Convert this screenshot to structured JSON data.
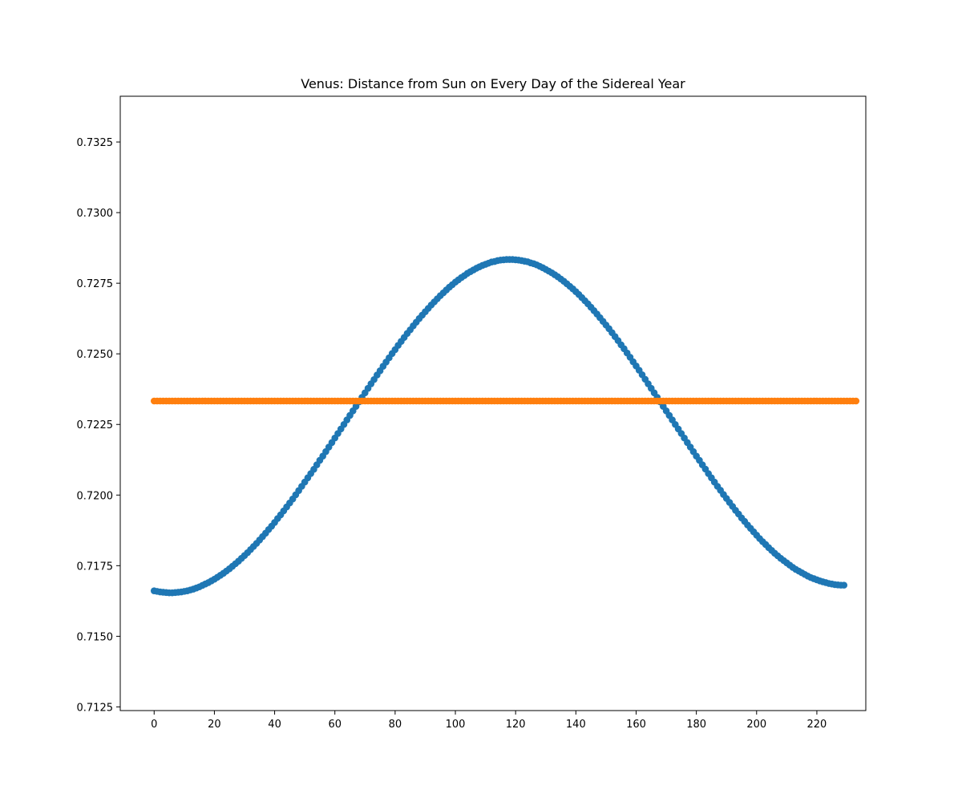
{
  "chart_data": {
    "type": "scatter",
    "title": "Venus: Distance from Sun on Every Day of the Sidereal Year",
    "xlabel": "",
    "ylabel": "",
    "xlim": [
      -11.25,
      236.25
    ],
    "ylim": [
      0.71237,
      0.73412
    ],
    "x_ticks": [
      0,
      20,
      40,
      60,
      80,
      100,
      120,
      140,
      160,
      180,
      200,
      220
    ],
    "x_tick_labels": [
      "0",
      "20",
      "40",
      "60",
      "80",
      "100",
      "120",
      "140",
      "160",
      "180",
      "200",
      "220"
    ],
    "y_ticks": [
      0.7125,
      0.715,
      0.7175,
      0.72,
      0.7225,
      0.725,
      0.7275,
      0.73,
      0.7325
    ],
    "y_tick_labels": [
      "0.7125",
      "0.7150",
      "0.7175",
      "0.7200",
      "0.7225",
      "0.7250",
      "0.7275",
      "0.7300",
      "0.7325"
    ],
    "grid": false,
    "legend": "none",
    "x_start": 0,
    "x_step": 1,
    "series": [
      {
        "color": "#1f77b4",
        "y": [
          0.71661,
          0.71659,
          0.71657,
          0.71656,
          0.71655,
          0.71654,
          0.71654,
          0.71655,
          0.71656,
          0.71657,
          0.71659,
          0.71661,
          0.71664,
          0.71667,
          0.71671,
          0.71675,
          0.7168,
          0.71685,
          0.7169,
          0.71696,
          0.71702,
          0.71709,
          0.71716,
          0.71723,
          0.71731,
          0.71739,
          0.71748,
          0.71757,
          0.71766,
          0.71776,
          0.71786,
          0.71796,
          0.71807,
          0.71818,
          0.71829,
          0.71841,
          0.71853,
          0.71865,
          0.71878,
          0.7189,
          0.71903,
          0.71917,
          0.7193,
          0.71944,
          0.71958,
          0.71972,
          0.71986,
          0.72001,
          0.72016,
          0.72031,
          0.72046,
          0.72061,
          0.72076,
          0.72091,
          0.72107,
          0.72123,
          0.72138,
          0.72154,
          0.7217,
          0.72186,
          0.72202,
          0.72218,
          0.72234,
          0.7225,
          0.72266,
          0.72282,
          0.72298,
          0.72314,
          0.7233,
          0.72346,
          0.72362,
          0.72378,
          0.72394,
          0.72409,
          0.72425,
          0.7244,
          0.72456,
          0.72471,
          0.72486,
          0.72501,
          0.72515,
          0.7253,
          0.72544,
          0.72558,
          0.72572,
          0.72585,
          0.72599,
          0.72612,
          0.72625,
          0.72637,
          0.72649,
          0.72661,
          0.72673,
          0.72684,
          0.72695,
          0.72706,
          0.72716,
          0.72726,
          0.72736,
          0.72745,
          0.72754,
          0.72762,
          0.7277,
          0.72777,
          0.72785,
          0.72791,
          0.72797,
          0.72803,
          0.72808,
          0.72813,
          0.72817,
          0.72821,
          0.72825,
          0.72827,
          0.7283,
          0.72832,
          0.72833,
          0.72834,
          0.72834,
          0.72834,
          0.72833,
          0.72832,
          0.7283,
          0.72828,
          0.72826,
          0.72822,
          0.72819,
          0.72815,
          0.7281,
          0.72805,
          0.72799,
          0.72793,
          0.72787,
          0.7278,
          0.72773,
          0.72765,
          0.72757,
          0.72748,
          0.72739,
          0.7273,
          0.7272,
          0.7271,
          0.72699,
          0.72688,
          0.72677,
          0.72665,
          0.72653,
          0.72641,
          0.72628,
          0.72615,
          0.72602,
          0.72589,
          0.72575,
          0.72561,
          0.72547,
          0.72532,
          0.72518,
          0.72503,
          0.72488,
          0.72472,
          0.72457,
          0.72442,
          0.72426,
          0.7241,
          0.72394,
          0.72378,
          0.72362,
          0.72346,
          0.7233,
          0.72314,
          0.72298,
          0.72282,
          0.72266,
          0.7225,
          0.72234,
          0.72218,
          0.72202,
          0.72186,
          0.7217,
          0.72154,
          0.72138,
          0.72123,
          0.72107,
          0.72092,
          0.72076,
          0.72061,
          0.72046,
          0.72031,
          0.72017,
          0.72002,
          0.71988,
          0.71974,
          0.7196,
          0.71946,
          0.71933,
          0.71919,
          0.71907,
          0.71894,
          0.71882,
          0.7187,
          0.71858,
          0.71846,
          0.71835,
          0.71825,
          0.71814,
          0.71804,
          0.71794,
          0.71785,
          0.71776,
          0.71768,
          0.7176,
          0.71752,
          0.71744,
          0.71737,
          0.71731,
          0.71725,
          0.71719,
          0.71713,
          0.71708,
          0.71704,
          0.717,
          0.71696,
          0.71693,
          0.7169,
          0.71687,
          0.71685,
          0.71683,
          0.71682,
          0.71681,
          0.71681
        ]
      },
      {
        "color": "#ff7f0e",
        "y": [
          0.72333,
          0.72333,
          0.72333,
          0.72333,
          0.72333,
          0.72333,
          0.72333,
          0.72333,
          0.72333,
          0.72333,
          0.72333,
          0.72333,
          0.72333,
          0.72333,
          0.72333,
          0.72333,
          0.72333,
          0.72333,
          0.72333,
          0.72333,
          0.72333,
          0.72333,
          0.72333,
          0.72333,
          0.72333,
          0.72333,
          0.72333,
          0.72333,
          0.72333,
          0.72333,
          0.72333,
          0.72333,
          0.72333,
          0.72333,
          0.72333,
          0.72333,
          0.72333,
          0.72333,
          0.72333,
          0.72333,
          0.72333,
          0.72333,
          0.72333,
          0.72333,
          0.72333,
          0.72333,
          0.72333,
          0.72333,
          0.72333,
          0.72333,
          0.72333,
          0.72333,
          0.72333,
          0.72333,
          0.72333,
          0.72333,
          0.72333,
          0.72333,
          0.72333,
          0.72333,
          0.72333,
          0.72333,
          0.72333,
          0.72333,
          0.72333,
          0.72333,
          0.72333,
          0.72333,
          0.72333,
          0.72333,
          0.72333,
          0.72333,
          0.72333,
          0.72333,
          0.72333,
          0.72333,
          0.72333,
          0.72333,
          0.72333,
          0.72333,
          0.72333,
          0.72333,
          0.72333,
          0.72333,
          0.72333,
          0.72333,
          0.72333,
          0.72333,
          0.72333,
          0.72333,
          0.72333,
          0.72333,
          0.72333,
          0.72333,
          0.72333,
          0.72333,
          0.72333,
          0.72333,
          0.72333,
          0.72333,
          0.72333,
          0.72333,
          0.72333,
          0.72333,
          0.72333,
          0.72333,
          0.72333,
          0.72333,
          0.72333,
          0.72333,
          0.72333,
          0.72333,
          0.72333,
          0.72333,
          0.72333,
          0.72333,
          0.72333,
          0.72333,
          0.72333,
          0.72333,
          0.72333,
          0.72333,
          0.72333,
          0.72333,
          0.72333,
          0.72333,
          0.72333,
          0.72333,
          0.72333,
          0.72333,
          0.72333,
          0.72333,
          0.72333,
          0.72333,
          0.72333,
          0.72333,
          0.72333,
          0.72333,
          0.72333,
          0.72333,
          0.72333,
          0.72333,
          0.72333,
          0.72333,
          0.72333,
          0.72333,
          0.72333,
          0.72333,
          0.72333,
          0.72333,
          0.72333,
          0.72333,
          0.72333,
          0.72333,
          0.72333,
          0.72333,
          0.72333,
          0.72333,
          0.72333,
          0.72333,
          0.72333,
          0.72333,
          0.72333,
          0.72333,
          0.72333,
          0.72333,
          0.72333,
          0.72333,
          0.72333,
          0.72333,
          0.72333,
          0.72333,
          0.72333,
          0.72333,
          0.72333,
          0.72333,
          0.72333,
          0.72333,
          0.72333,
          0.72333,
          0.72333,
          0.72333,
          0.72333,
          0.72333,
          0.72333,
          0.72333,
          0.72333,
          0.72333,
          0.72333,
          0.72333,
          0.72333,
          0.72333,
          0.72333,
          0.72333,
          0.72333,
          0.72333,
          0.72333,
          0.72333,
          0.72333,
          0.72333,
          0.72333,
          0.72333,
          0.72333,
          0.72333,
          0.72333,
          0.72333,
          0.72333,
          0.72333,
          0.72333,
          0.72333,
          0.72333,
          0.72333,
          0.72333,
          0.72333,
          0.72333,
          0.72333,
          0.72333,
          0.72333,
          0.72333,
          0.72333,
          0.72333,
          0.72333,
          0.72333,
          0.72333,
          0.72333,
          0.72333,
          0.72333,
          0.72333,
          0.72333,
          0.72333,
          0.72333,
          0.72333,
          0.72333,
          0.72333
        ]
      }
    ]
  }
}
